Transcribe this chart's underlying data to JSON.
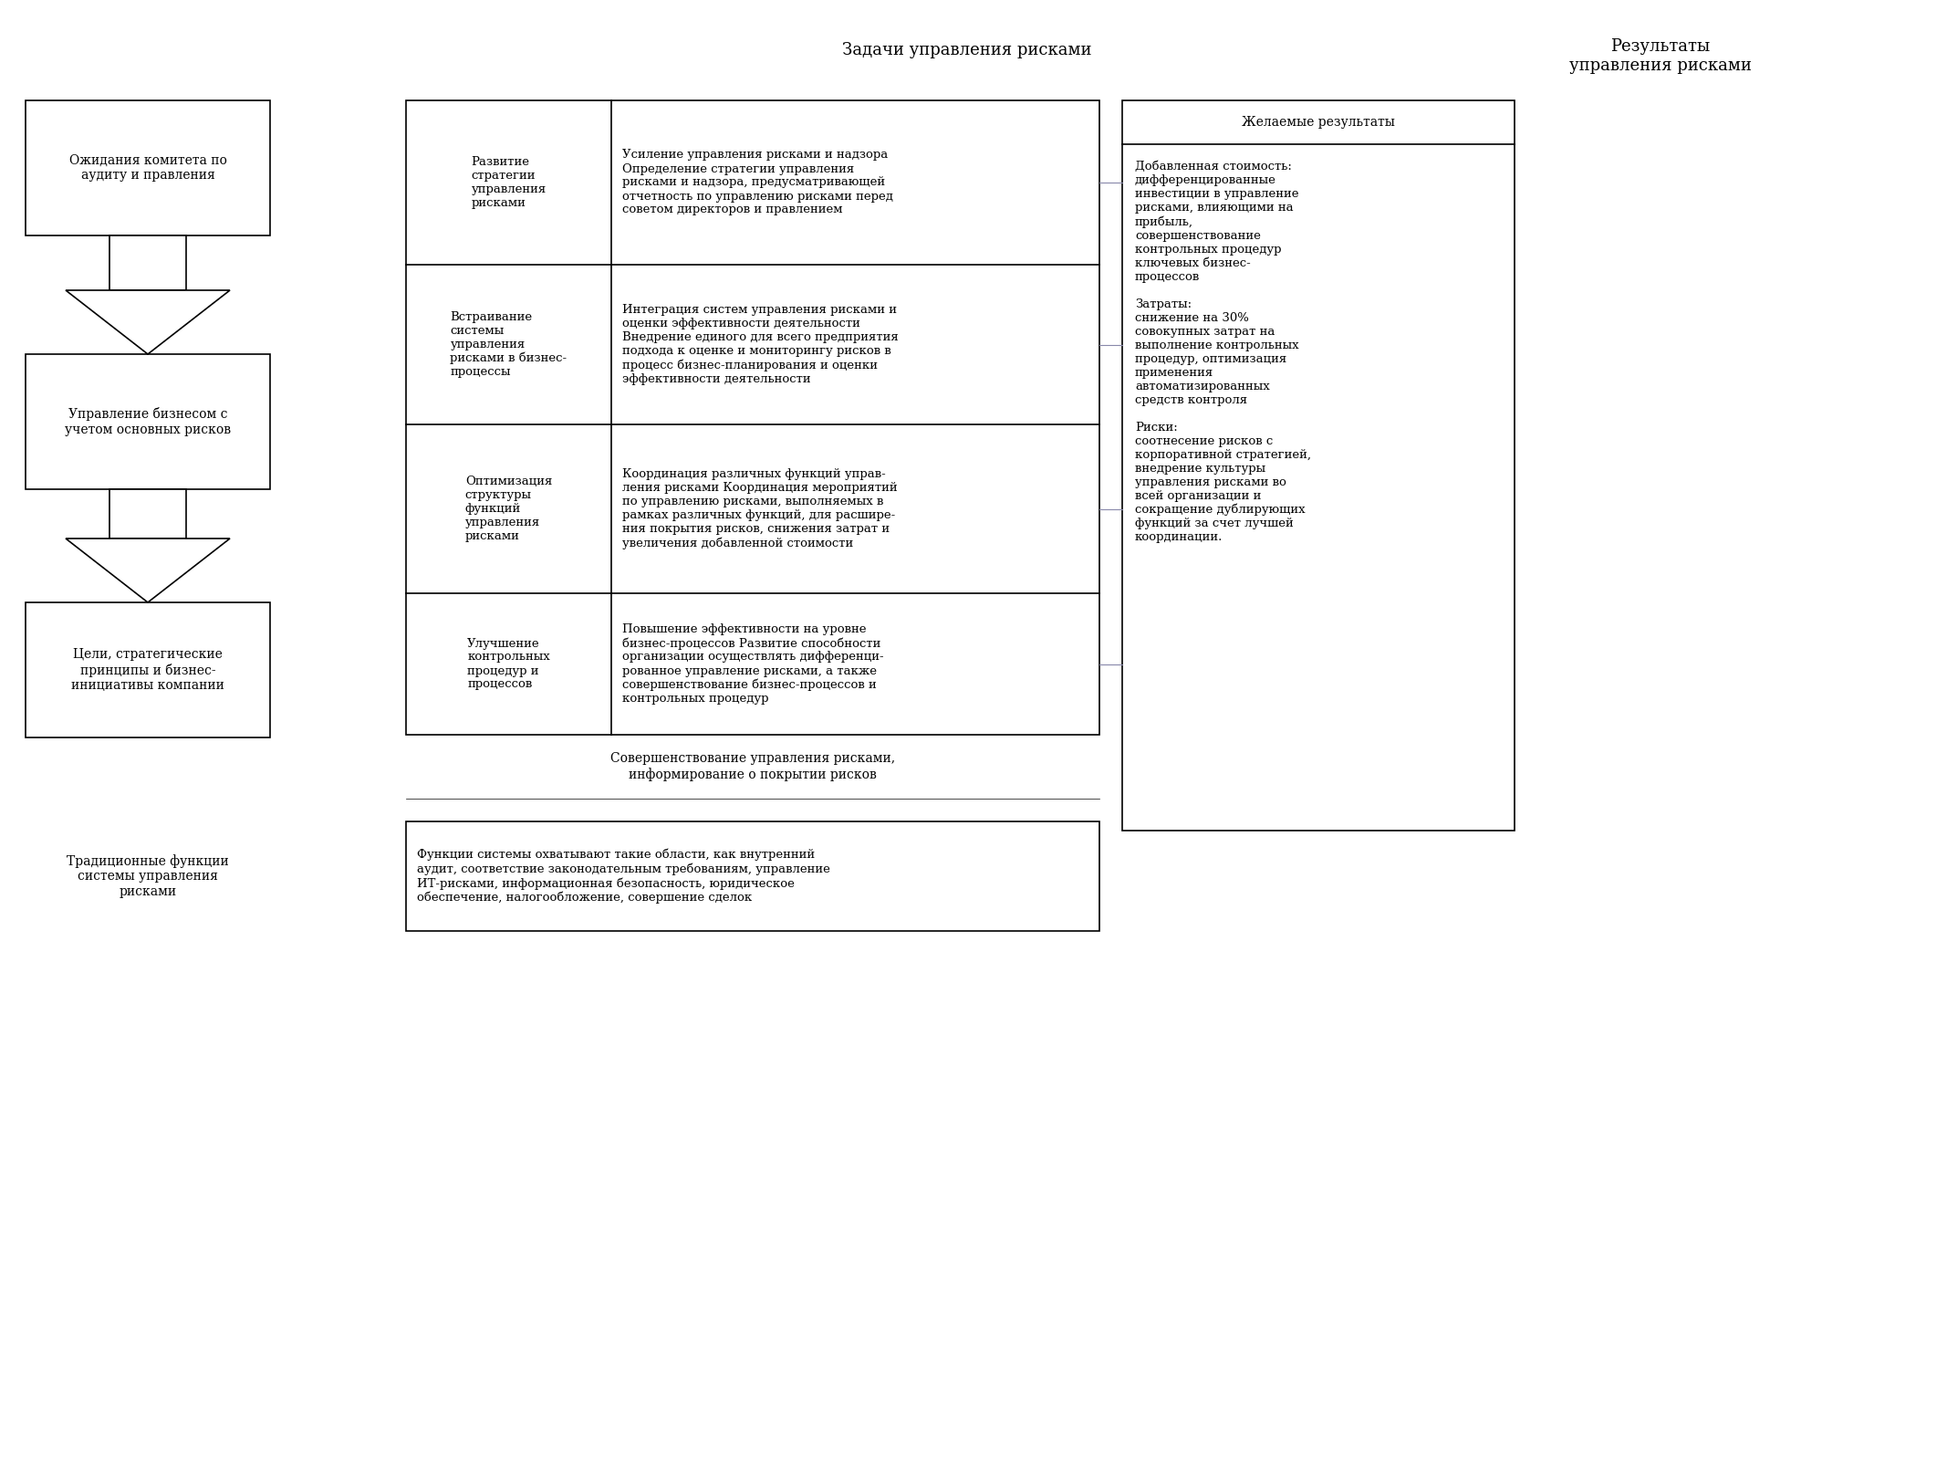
{
  "bg_color": "#ffffff",
  "ec": "#000000",
  "tc": "#000000",
  "lw": 1.2,
  "title_center": "Задачи управления рисками",
  "title_right": "Результаты\nуправления рисками",
  "left_box1": {
    "text": "Ожидания комитета по\nаудиту и правления"
  },
  "left_box2": {
    "text": "Управление бизнесом с\nучетом основных рисков"
  },
  "left_box3": {
    "text": "Цели, стратегические\nпринципы и бизнес-\nинициативы компании"
  },
  "ml_box1": {
    "text": "Развитие\nстратегии\nуправления\nрисками"
  },
  "ml_box2": {
    "text": "Встраивание\nсистемы\nуправления\nрисками в бизнес-\nпроцессы"
  },
  "ml_box3": {
    "text": "Оптимизация\nструктуры\nфункций\nуправления\nрисками"
  },
  "ml_box4": {
    "text": "Улучшение\nконтрольных\nпроцедур и\nпроцессов"
  },
  "mr_box1": {
    "text": "Усиление управления рисками и надзора\nОпределение стратегии управления\nрисками и надзора, предусматривающей\nотчетность по управлению рисками перед\nсоветом директоров и правлением"
  },
  "mr_box2": {
    "text": "Интеграция систем управления рисками и\nоценки эффективности деятельности\nВнедрение единого для всего предприятия\nподхода к оценке и мониторингу рисков в\nпроцесс бизнес-планирования и оценки\nэффективности деятельности"
  },
  "mr_box3": {
    "text": "Координация различных функций управ-\nления рисками Координация мероприятий\nпо управлению рисками, выполняемых в\nрамках различных функций, для расшире-\nния покрытия рисков, снижения затрат и\nувеличения добавленной стоимости"
  },
  "mr_box4": {
    "text": "Повышение эффективности на уровне\nбизнес-процессов Развитие способности\nорганизации осуществлять дифференци-\nрованное управление рисками, а также\nсовершенствование бизнес-процессов и\nконтрольных процедур"
  },
  "bottom_mid_text": "Совершенствование управления рисками,\nинформирование о покрытии рисков",
  "right_header": "Желаемые результаты",
  "right_content": "Добавленная стоимость:\nдифференцированные\nинвестиции в управление\nрисками, влияющими на\nприбыль,\nсовершенствование\nконтрольных процедур\nключевых бизнес-\nпроцессов\n\nЗатраты:\nснижение на 30%\nсовокупных затрат на\nвыполнение контрольных\nпроцедур, оптимизация\nприменения\nавтоматизированных\nсредств контроля\n\nРиски:\nсоотнесение рисков с\nкорпоративной стратегией,\nвнедрение культуры\nуправления рисками во\nвсей организации и\nсокращение дублирующих\nфункций за счет лучшей\nкоординации.",
  "bottom_box_text": "Функции системы охватывают такие области, как внутренний\nаудит, соответствие законодательным требованиям, управление\nИТ-рисками, информационная безопасность, юридическое\nобеспечение, налогообложение, совершение сделок",
  "bottom_left_label": "Традиционные функции\nсистемы управления\nрисками"
}
